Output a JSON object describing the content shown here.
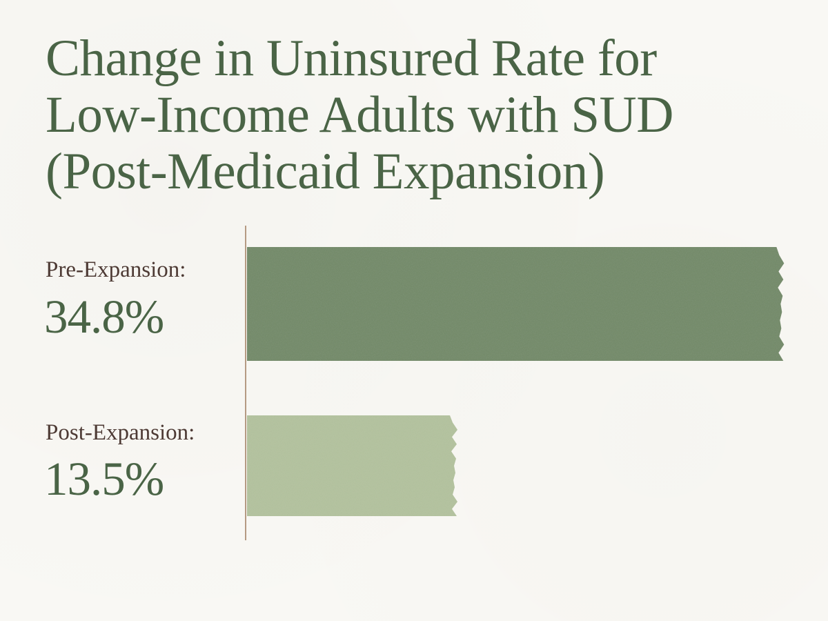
{
  "title_lines": [
    "Change in Uninsured Rate for",
    "Low-Income Adults with SUD",
    "(Post-Medicaid Expansion)"
  ],
  "rows": [
    {
      "label": "Pre-Expansion:",
      "value_text": "34.8%"
    },
    {
      "label": "Post-Expansion:",
      "value_text": "13.5%"
    }
  ],
  "colors": {
    "title": "#4a6446",
    "label": "#4d3a34",
    "bar_pre": "#728a68",
    "bar_post": "#b3c29e",
    "axis": "#b59a82"
  },
  "chart_data": {
    "type": "bar",
    "orientation": "horizontal",
    "title": "Change in Uninsured Rate for Low-Income Adults with SUD (Post-Medicaid Expansion)",
    "categories": [
      "Pre-Expansion",
      "Post-Expansion"
    ],
    "values": [
      34.8,
      13.5
    ],
    "unit": "%",
    "xlim": [
      0,
      36
    ],
    "grid": false,
    "legend": "none"
  }
}
